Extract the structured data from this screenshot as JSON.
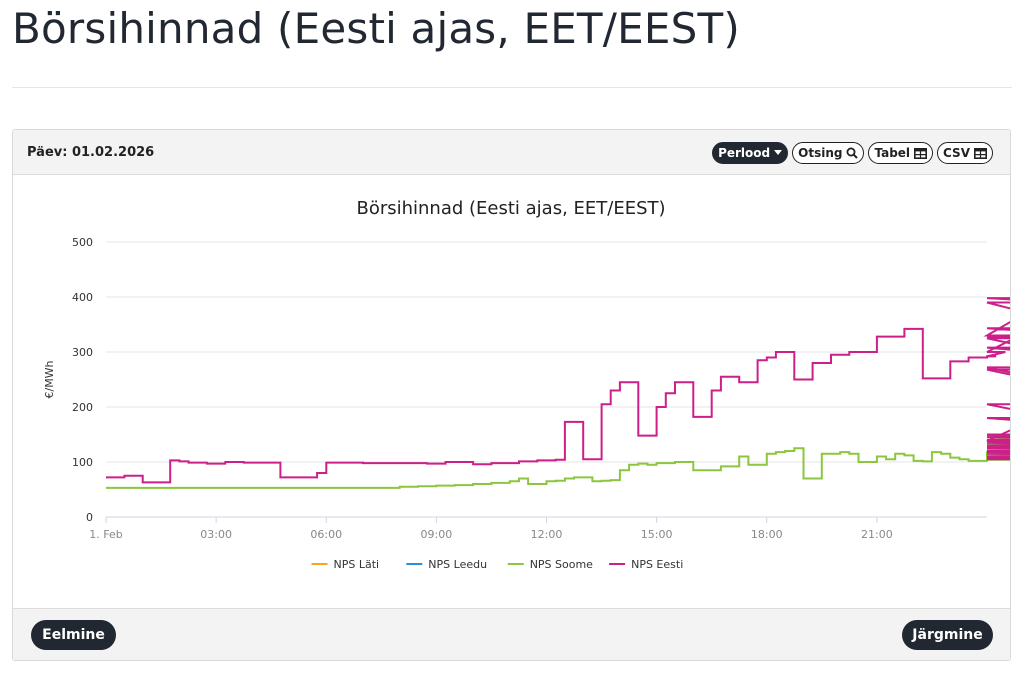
{
  "page": {
    "title": "Börsihinnad (Eesti ajas, EET/EEST)"
  },
  "panel": {
    "day_label": "Päev: 01.02.2026",
    "tools": {
      "period": "Perlood",
      "search": "Otsing",
      "table": "Tabel",
      "csv": "CSV"
    },
    "prev_label": "Eelmine",
    "next_label": "Järgmine"
  },
  "colors": {
    "latvia": "#f5a623",
    "lithuania": "#2f8fd6",
    "finland": "#8cc63f",
    "estonia": "#cc1f8a",
    "dark": "#222831"
  },
  "icons": {
    "period": "caret-down-icon",
    "search": "search-icon",
    "table": "table-icon",
    "csv": "table-icon"
  },
  "chart_data": {
    "type": "line",
    "step": true,
    "title": "Börsihinnad (Eesti ajas, EET/EEST)",
    "ylabel": "€/MWh",
    "xlabel": "",
    "ylim": [
      0,
      500
    ],
    "yticks": [
      0,
      100,
      200,
      300,
      400,
      500
    ],
    "xlim": [
      0,
      24
    ],
    "xticks": [
      {
        "x": 0,
        "label": "1. Feb"
      },
      {
        "x": 3,
        "label": "03:00"
      },
      {
        "x": 6,
        "label": "06:00"
      },
      {
        "x": 9,
        "label": "09:00"
      },
      {
        "x": 12,
        "label": "12:00"
      },
      {
        "x": 15,
        "label": "15:00"
      },
      {
        "x": 18,
        "label": "18:00"
      },
      {
        "x": 21,
        "label": "21:00"
      }
    ],
    "interval_hours": 0.25,
    "grid": true,
    "legend_position": "bottom",
    "series": [
      {
        "name": "NPS Läti",
        "color": "#f5a623",
        "values": []
      },
      {
        "name": "NPS Leedu",
        "color": "#2f8fd6",
        "values": []
      },
      {
        "name": "NPS Soome",
        "color": "#8cc63f",
        "values": [
          53,
          53,
          53,
          53,
          53,
          53,
          53,
          53,
          53,
          53,
          53,
          53,
          53,
          53,
          53,
          53,
          53,
          53,
          53,
          53,
          53,
          53,
          53,
          53,
          53,
          53,
          53,
          53,
          53,
          53,
          53,
          53,
          55,
          55,
          56,
          56,
          57,
          57,
          58,
          58,
          60,
          60,
          62,
          62,
          65,
          70,
          60,
          60,
          65,
          66,
          70,
          72,
          72,
          65,
          66,
          67,
          85,
          95,
          97,
          95,
          98,
          98,
          100,
          100,
          85,
          85,
          85,
          92,
          92,
          110,
          95,
          95,
          115,
          118,
          120,
          125,
          70,
          70,
          115,
          115,
          118,
          115,
          100,
          100,
          110,
          105,
          115,
          112,
          102,
          101,
          118,
          115,
          108,
          105,
          102,
          102,
          118,
          118,
          118,
          118,
          112,
          112,
          125,
          125,
          130,
          133,
          135,
          135,
          125,
          125,
          130,
          140,
          150,
          148,
          140,
          135,
          130,
          125,
          122,
          122,
          135,
          135,
          133,
          133,
          140,
          120,
          115,
          115,
          140,
          140,
          135,
          135,
          135,
          133,
          130,
          130,
          125,
          125,
          122,
          122,
          120,
          120,
          118,
          118,
          120,
          120,
          118,
          118,
          115,
          115,
          112,
          112,
          110,
          110,
          108,
          108,
          106,
          106,
          104,
          104
        ]
      },
      {
        "name": "NPS Eesti",
        "color": "#cc1f8a",
        "values": [
          72,
          72,
          75,
          75,
          63,
          63,
          63,
          103,
          101,
          99,
          99,
          97,
          97,
          100,
          100,
          99,
          99,
          99,
          99,
          72,
          72,
          72,
          72,
          80,
          99,
          99,
          99,
          99,
          98,
          98,
          98,
          98,
          98,
          98,
          98,
          97,
          97,
          100,
          100,
          100,
          96,
          96,
          98,
          98,
          98,
          101,
          101,
          103,
          103,
          104,
          173,
          173,
          105,
          105,
          205,
          230,
          245,
          245,
          148,
          148,
          200,
          225,
          245,
          245,
          182,
          182,
          230,
          255,
          255,
          245,
          245,
          285,
          290,
          300,
          300,
          250,
          250,
          280,
          280,
          295,
          295,
          300,
          300,
          300,
          328,
          328,
          328,
          342,
          342,
          252,
          252,
          252,
          283,
          283,
          290,
          290,
          292,
          292,
          300,
          325,
          325,
          330,
          330,
          398,
          398,
          390,
          390,
          343,
          343,
          328,
          328,
          325,
          268,
          268,
          205,
          205,
          138,
          138,
          308,
          308,
          272,
          272,
          180,
          180,
          145,
          145,
          150,
          150,
          140,
          140,
          140,
          140,
          138,
          138,
          135,
          135,
          135,
          135,
          125,
          125,
          120,
          120,
          130,
          130,
          148,
          148,
          138,
          138,
          125,
          125,
          145,
          145,
          128,
          128,
          118,
          118,
          110,
          110,
          128,
          128,
          115,
          115,
          108,
          108,
          105,
          105
        ]
      }
    ]
  }
}
